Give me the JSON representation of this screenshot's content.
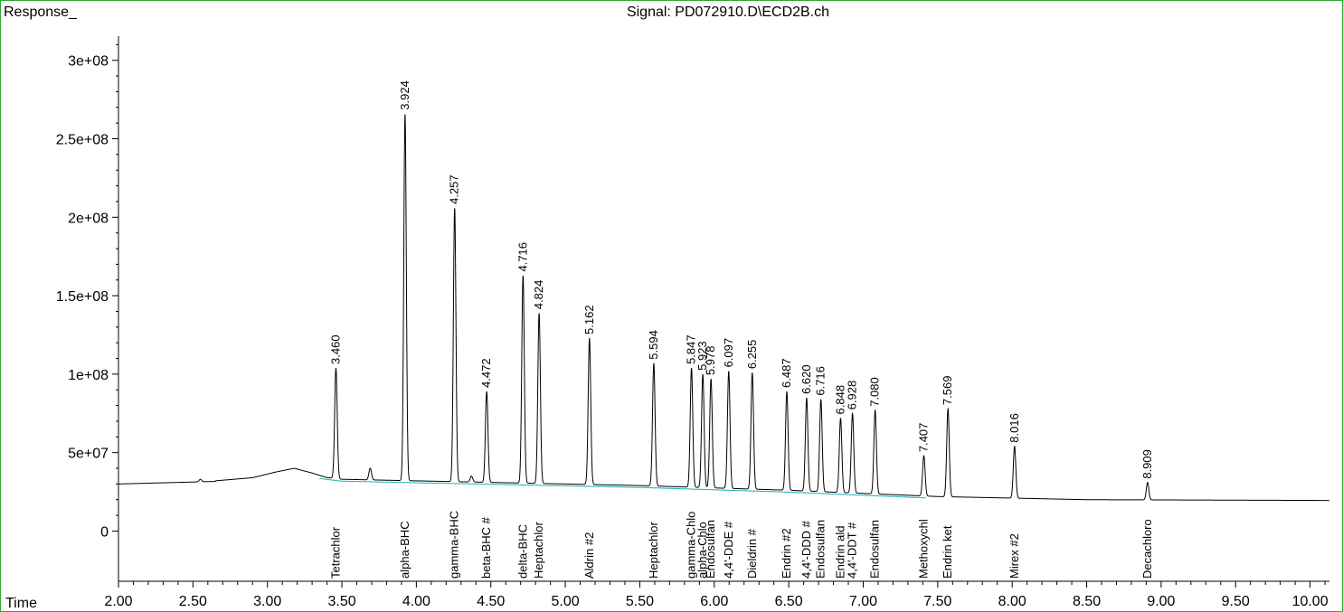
{
  "chart_data": {
    "type": "line",
    "title": "Signal: PD072910.D\\ECD2B.ch",
    "ylabel": "Response_",
    "xlabel": "Time",
    "xlim": [
      2.0,
      10.13
    ],
    "ylim": [
      -32000000,
      320000000
    ],
    "grid": false,
    "legend": "none",
    "baseline_color": "#1fb0b0",
    "frame_color": "#2fa82f",
    "x_ticks": [
      2.0,
      2.5,
      3.0,
      3.5,
      4.0,
      4.5,
      5.0,
      5.5,
      6.0,
      6.5,
      7.0,
      7.5,
      8.0,
      8.5,
      9.0,
      9.5,
      10.0
    ],
    "x_tick_labels": [
      "2.00",
      "2.50",
      "3.00",
      "3.50",
      "4.00",
      "4.50",
      "5.00",
      "5.50",
      "6.00",
      "6.50",
      "7.00",
      "7.50",
      "8.00",
      "8.50",
      "9.00",
      "9.50",
      "10.00"
    ],
    "y_ticks": [
      0,
      50000000,
      100000000,
      150000000,
      200000000,
      250000000,
      300000000
    ],
    "y_tick_labels": [
      "0",
      "5e+07",
      "1e+08",
      "1.5e+08",
      "2e+08",
      "2.5e+08",
      "3e+08"
    ],
    "baseline_points": [
      [
        2.0,
        30000000
      ],
      [
        2.8,
        32000000
      ],
      [
        3.15,
        37000000
      ],
      [
        3.5,
        33000000
      ],
      [
        4.5,
        31000000
      ],
      [
        5.5,
        29000000
      ],
      [
        6.5,
        26000000
      ],
      [
        7.5,
        22000000
      ],
      [
        8.5,
        20000000
      ],
      [
        10.13,
        19500000
      ]
    ],
    "hump": [
      [
        2.65,
        32000000
      ],
      [
        2.9,
        34000000
      ],
      [
        3.05,
        37500000
      ],
      [
        3.18,
        40000000
      ],
      [
        3.3,
        37000000
      ],
      [
        3.45,
        32500000
      ]
    ],
    "minor_peaks": [
      [
        2.55,
        33000000
      ],
      [
        3.69,
        40000000
      ],
      [
        4.37,
        35000000
      ]
    ],
    "peaks": [
      {
        "rt": 3.46,
        "label": "3.460",
        "height": 104000000,
        "compound": "Tetrachlor"
      },
      {
        "rt": 3.924,
        "label": "3.924",
        "height": 266000000,
        "compound": "alpha-BHC"
      },
      {
        "rt": 4.257,
        "label": "4.257",
        "height": 206000000,
        "compound": "gamma-BHC"
      },
      {
        "rt": 4.472,
        "label": "4.472",
        "height": 89000000,
        "compound": "beta-BHC #"
      },
      {
        "rt": 4.716,
        "label": "4.716",
        "height": 163000000,
        "compound": "delta-BHC"
      },
      {
        "rt": 4.824,
        "label": "4.824",
        "height": 139000000,
        "compound": "Heptachlor"
      },
      {
        "rt": 5.162,
        "label": "5.162",
        "height": 123000000,
        "compound": "Aldrin #2"
      },
      {
        "rt": 5.594,
        "label": "5.594",
        "height": 107000000,
        "compound": "Heptachlor"
      },
      {
        "rt": 5.847,
        "label": "5.847",
        "height": 104000000,
        "compound": "gamma-Chlo"
      },
      {
        "rt": 5.923,
        "label": "5.923",
        "height": 100000000,
        "compound": "alpha-Chlo"
      },
      {
        "rt": 5.978,
        "label": "5.978",
        "height": 97000000,
        "compound": "Endosulfan"
      },
      {
        "rt": 6.097,
        "label": "6.097",
        "height": 102000000,
        "compound": "4,4'-DDE #"
      },
      {
        "rt": 6.255,
        "label": "6.255",
        "height": 101000000,
        "compound": "Dieldrin #"
      },
      {
        "rt": 6.487,
        "label": "6.487",
        "height": 89000000,
        "compound": "Endrin #2"
      },
      {
        "rt": 6.62,
        "label": "6.620",
        "height": 85000000,
        "compound": "4,4'-DDD #"
      },
      {
        "rt": 6.716,
        "label": "6.716",
        "height": 84000000,
        "compound": "Endosulfan"
      },
      {
        "rt": 6.848,
        "label": "6.848",
        "height": 72000000,
        "compound": "Endrin ald"
      },
      {
        "rt": 6.928,
        "label": "6.928",
        "height": 75000000,
        "compound": "4,4'-DDT #"
      },
      {
        "rt": 7.08,
        "label": "7.080",
        "height": 77000000,
        "compound": "Endosulfan"
      },
      {
        "rt": 7.407,
        "label": "7.407",
        "height": 48000000,
        "compound": "Methoxychl"
      },
      {
        "rt": 7.569,
        "label": "7.569",
        "height": 78000000,
        "compound": "Endrin ket"
      },
      {
        "rt": 8.016,
        "label": "8.016",
        "height": 54000000,
        "compound": "Mirex #2"
      },
      {
        "rt": 8.909,
        "label": "8.909",
        "height": 31000000,
        "compound": "Decachloro"
      }
    ]
  }
}
